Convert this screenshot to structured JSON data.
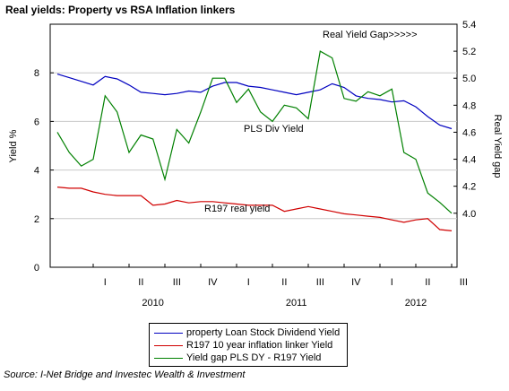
{
  "title": "Real yields: Property vs RSA Inflation linkers",
  "source": "Source: I-Net Bridge and Investec Wealth & Investment",
  "colors": {
    "pls": "#0000c0",
    "r197": "#d00000",
    "gap": "#008000",
    "grid": "#c8c8c8"
  },
  "chart_data": {
    "type": "line",
    "x": [
      "2009-10",
      "2009-11",
      "2009-12",
      "2010-01",
      "2010-02",
      "2010-03",
      "2010-04",
      "2010-05",
      "2010-06",
      "2010-07",
      "2010-08",
      "2010-09",
      "2010-10",
      "2010-11",
      "2010-12",
      "2011-01",
      "2011-02",
      "2011-03",
      "2011-04",
      "2011-05",
      "2011-06",
      "2011-07",
      "2011-08",
      "2011-09",
      "2011-10",
      "2011-11",
      "2011-12",
      "2012-01",
      "2012-02",
      "2012-03",
      "2012-04",
      "2012-05",
      "2012-06",
      "2012-07"
    ],
    "x_quarter_labels": [
      "I",
      "II",
      "III",
      "IV",
      "I",
      "II",
      "III",
      "IV",
      "I",
      "II",
      "III"
    ],
    "x_year_labels": [
      "2010",
      "2011",
      "2012"
    ],
    "y_left": {
      "label": "Yield %",
      "ylim": [
        0,
        10
      ],
      "ticks": [
        0,
        2,
        4,
        6,
        8
      ]
    },
    "y_right": {
      "label": "Real Yield gap",
      "ylim": [
        3.6,
        5.4
      ],
      "ticks": [
        4.0,
        4.2,
        4.4,
        4.6,
        4.8,
        5.0,
        5.2,
        5.4
      ]
    },
    "grid": true,
    "series": [
      {
        "name": "property Loan Stock Dividend Yield",
        "axis": "left",
        "color": "#0000c0",
        "values": [
          7.95,
          7.8,
          7.65,
          7.5,
          7.85,
          7.75,
          7.5,
          7.2,
          7.15,
          7.1,
          7.15,
          7.25,
          7.2,
          7.45,
          7.6,
          7.6,
          7.45,
          7.4,
          7.3,
          7.2,
          7.1,
          7.2,
          7.3,
          7.55,
          7.4,
          7.05,
          6.95,
          6.9,
          6.8,
          6.85,
          6.6,
          6.2,
          5.85,
          5.7
        ],
        "annotation": "PLS Div Yield"
      },
      {
        "name": "R197 10 year inflation linker Yield",
        "axis": "left",
        "color": "#d00000",
        "values": [
          3.3,
          3.25,
          3.25,
          3.1,
          3.0,
          2.95,
          2.95,
          2.95,
          2.55,
          2.6,
          2.75,
          2.65,
          2.7,
          2.7,
          2.65,
          2.6,
          2.55,
          2.55,
          2.55,
          2.3,
          2.4,
          2.5,
          2.4,
          2.3,
          2.2,
          2.15,
          2.1,
          2.05,
          1.95,
          1.85,
          1.95,
          2.0,
          1.55,
          1.5
        ],
        "annotation": "R197 real yield"
      },
      {
        "name": "Yield gap PLS DY - R197 Yield",
        "axis": "right",
        "color": "#008000",
        "values": [
          4.6,
          4.45,
          4.35,
          4.4,
          4.87,
          4.75,
          4.45,
          4.58,
          4.55,
          4.25,
          4.62,
          4.52,
          4.75,
          5.0,
          5.0,
          4.82,
          4.92,
          4.75,
          4.68,
          4.8,
          4.78,
          4.7,
          5.2,
          5.15,
          4.85,
          4.83,
          4.9,
          4.87,
          4.92,
          4.45,
          4.4,
          4.15,
          4.08,
          4.0
        ],
        "annotation": "Real Yield Gap>>>>>"
      }
    ]
  }
}
